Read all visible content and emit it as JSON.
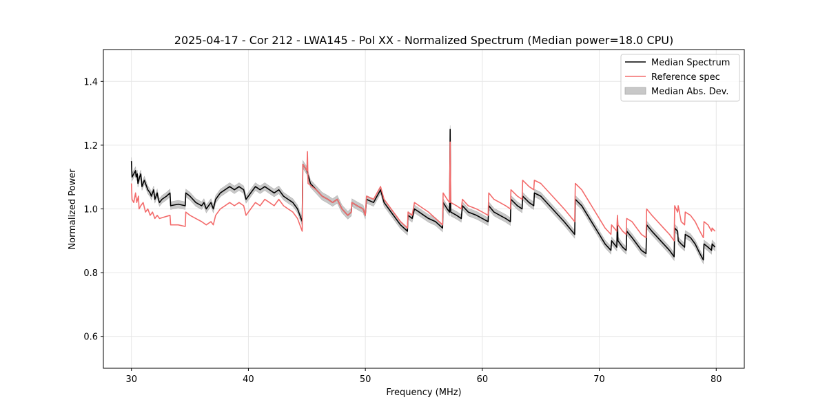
{
  "chart_data": {
    "type": "line",
    "title": "2025-04-17 - Cor 212 - LWA145 - Pol XX - Normalized Spectrum (Median power=18.0 CPU)",
    "xlabel": "Frequency (MHz)",
    "ylabel": "Normalized Power",
    "xlim": [
      27.6,
      82.4
    ],
    "ylim": [
      0.5,
      1.5
    ],
    "xticks": [
      30,
      40,
      50,
      60,
      70,
      80
    ],
    "yticks": [
      0.6,
      0.8,
      1.0,
      1.2,
      1.4
    ],
    "xtick_labels": [
      "30",
      "40",
      "50",
      "60",
      "70",
      "80"
    ],
    "ytick_labels": [
      "0.6",
      "0.8",
      "1.0",
      "1.2",
      "1.4"
    ],
    "grid": true,
    "legend_position": "top-right",
    "mad_width": 0.012,
    "series": [
      {
        "name": "Median Spectrum",
        "color": "#000000",
        "points": [
          [
            30.0,
            1.15
          ],
          [
            30.05,
            1.1
          ],
          [
            30.2,
            1.11
          ],
          [
            30.35,
            1.12
          ],
          [
            30.4,
            1.1
          ],
          [
            30.5,
            1.11
          ],
          [
            30.55,
            1.08
          ],
          [
            30.7,
            1.1
          ],
          [
            30.8,
            1.11
          ],
          [
            30.9,
            1.07
          ],
          [
            31.1,
            1.09
          ],
          [
            31.2,
            1.08
          ],
          [
            31.4,
            1.06
          ],
          [
            31.6,
            1.05
          ],
          [
            31.7,
            1.04
          ],
          [
            31.9,
            1.06
          ],
          [
            32.0,
            1.03
          ],
          [
            32.2,
            1.05
          ],
          [
            32.3,
            1.03
          ],
          [
            32.4,
            1.02
          ],
          [
            32.6,
            1.03
          ],
          [
            33.0,
            1.04
          ],
          [
            33.3,
            1.05
          ],
          [
            33.35,
            1.01
          ],
          [
            34.0,
            1.015
          ],
          [
            34.6,
            1.01
          ],
          [
            34.65,
            1.05
          ],
          [
            35.0,
            1.04
          ],
          [
            35.5,
            1.02
          ],
          [
            36.0,
            1.01
          ],
          [
            36.2,
            1.02
          ],
          [
            36.4,
            1.0
          ],
          [
            36.8,
            1.02
          ],
          [
            37.0,
            1.0
          ],
          [
            37.2,
            1.03
          ],
          [
            37.6,
            1.05
          ],
          [
            38.0,
            1.06
          ],
          [
            38.4,
            1.07
          ],
          [
            38.8,
            1.06
          ],
          [
            39.2,
            1.07
          ],
          [
            39.6,
            1.06
          ],
          [
            39.8,
            1.03
          ],
          [
            40.2,
            1.05
          ],
          [
            40.6,
            1.07
          ],
          [
            41.0,
            1.06
          ],
          [
            41.4,
            1.07
          ],
          [
            41.8,
            1.06
          ],
          [
            42.2,
            1.05
          ],
          [
            42.6,
            1.06
          ],
          [
            43.0,
            1.04
          ],
          [
            43.4,
            1.03
          ],
          [
            43.8,
            1.02
          ],
          [
            44.2,
            1.0
          ],
          [
            44.6,
            0.96
          ],
          [
            44.65,
            1.14
          ],
          [
            45.0,
            1.12
          ],
          [
            45.3,
            1.08
          ],
          [
            45.8,
            1.06
          ],
          [
            46.3,
            1.04
          ],
          [
            46.8,
            1.03
          ],
          [
            47.2,
            1.02
          ],
          [
            47.6,
            1.03
          ],
          [
            48.0,
            1.0
          ],
          [
            48.5,
            0.98
          ],
          [
            48.8,
            0.99
          ],
          [
            48.85,
            1.02
          ],
          [
            49.3,
            1.01
          ],
          [
            49.8,
            1.0
          ],
          [
            50.0,
            0.98
          ],
          [
            50.1,
            1.03
          ],
          [
            50.7,
            1.02
          ],
          [
            51.3,
            1.06
          ],
          [
            51.6,
            1.02
          ],
          [
            52.2,
            0.99
          ],
          [
            53.0,
            0.95
          ],
          [
            53.6,
            0.93
          ],
          [
            53.65,
            0.98
          ],
          [
            54.0,
            0.97
          ],
          [
            54.2,
            1.0
          ],
          [
            54.6,
            0.99
          ],
          [
            55.0,
            0.98
          ],
          [
            55.4,
            0.97
          ],
          [
            56.0,
            0.96
          ],
          [
            56.6,
            0.94
          ],
          [
            56.65,
            1.02
          ],
          [
            57.0,
            1.0
          ],
          [
            57.2,
            0.99
          ],
          [
            57.25,
            1.25
          ],
          [
            57.3,
            0.99
          ],
          [
            57.8,
            0.98
          ],
          [
            58.2,
            0.97
          ],
          [
            58.3,
            1.01
          ],
          [
            58.8,
            0.99
          ],
          [
            59.5,
            0.98
          ],
          [
            60.0,
            0.97
          ],
          [
            60.5,
            0.96
          ],
          [
            60.55,
            1.01
          ],
          [
            61.0,
            0.99
          ],
          [
            61.5,
            0.98
          ],
          [
            62.0,
            0.97
          ],
          [
            62.4,
            0.96
          ],
          [
            62.45,
            1.03
          ],
          [
            63.0,
            1.01
          ],
          [
            63.4,
            1.0
          ],
          [
            63.45,
            1.04
          ],
          [
            64.0,
            1.02
          ],
          [
            64.4,
            1.01
          ],
          [
            64.45,
            1.05
          ],
          [
            65.0,
            1.04
          ],
          [
            66.0,
            1.0
          ],
          [
            67.0,
            0.96
          ],
          [
            67.9,
            0.92
          ],
          [
            67.95,
            1.03
          ],
          [
            68.5,
            1.01
          ],
          [
            69.0,
            0.98
          ],
          [
            69.5,
            0.95
          ],
          [
            70.0,
            0.92
          ],
          [
            70.5,
            0.89
          ],
          [
            71.0,
            0.87
          ],
          [
            71.05,
            0.9
          ],
          [
            71.5,
            0.88
          ],
          [
            71.55,
            0.97
          ],
          [
            71.6,
            0.9
          ],
          [
            72.0,
            0.88
          ],
          [
            72.3,
            0.87
          ],
          [
            72.35,
            0.93
          ],
          [
            72.8,
            0.91
          ],
          [
            73.2,
            0.89
          ],
          [
            73.6,
            0.87
          ],
          [
            74.0,
            0.86
          ],
          [
            74.05,
            0.95
          ],
          [
            74.5,
            0.93
          ],
          [
            75.0,
            0.91
          ],
          [
            75.5,
            0.89
          ],
          [
            76.0,
            0.87
          ],
          [
            76.4,
            0.85
          ],
          [
            76.45,
            0.94
          ],
          [
            76.7,
            0.93
          ],
          [
            76.75,
            0.9
          ],
          [
            77.0,
            0.89
          ],
          [
            77.3,
            0.88
          ],
          [
            77.35,
            0.92
          ],
          [
            77.8,
            0.91
          ],
          [
            78.2,
            0.89
          ],
          [
            78.6,
            0.86
          ],
          [
            78.9,
            0.84
          ],
          [
            78.95,
            0.89
          ],
          [
            79.3,
            0.88
          ],
          [
            79.6,
            0.87
          ],
          [
            79.65,
            0.89
          ],
          [
            79.9,
            0.88
          ]
        ]
      },
      {
        "name": "Reference spec",
        "color": "#f36b6b",
        "points": [
          [
            30.0,
            1.08
          ],
          [
            30.05,
            1.03
          ],
          [
            30.2,
            1.02
          ],
          [
            30.35,
            1.05
          ],
          [
            30.45,
            1.02
          ],
          [
            30.6,
            1.04
          ],
          [
            30.65,
            1.0
          ],
          [
            30.8,
            1.01
          ],
          [
            31.0,
            1.02
          ],
          [
            31.2,
            0.99
          ],
          [
            31.4,
            1.0
          ],
          [
            31.6,
            0.98
          ],
          [
            31.8,
            0.99
          ],
          [
            32.0,
            0.97
          ],
          [
            32.2,
            0.98
          ],
          [
            32.4,
            0.97
          ],
          [
            33.3,
            0.98
          ],
          [
            33.35,
            0.95
          ],
          [
            34.0,
            0.95
          ],
          [
            34.6,
            0.945
          ],
          [
            34.65,
            0.99
          ],
          [
            35.0,
            0.98
          ],
          [
            35.5,
            0.97
          ],
          [
            36.0,
            0.96
          ],
          [
            36.4,
            0.95
          ],
          [
            36.8,
            0.96
          ],
          [
            37.0,
            0.95
          ],
          [
            37.2,
            0.98
          ],
          [
            37.6,
            1.0
          ],
          [
            38.0,
            1.01
          ],
          [
            38.4,
            1.02
          ],
          [
            38.8,
            1.01
          ],
          [
            39.2,
            1.02
          ],
          [
            39.6,
            1.01
          ],
          [
            39.8,
            0.98
          ],
          [
            40.2,
            1.0
          ],
          [
            40.6,
            1.02
          ],
          [
            41.0,
            1.01
          ],
          [
            41.4,
            1.03
          ],
          [
            41.8,
            1.02
          ],
          [
            42.2,
            1.01
          ],
          [
            42.6,
            1.03
          ],
          [
            43.0,
            1.01
          ],
          [
            43.4,
            1.0
          ],
          [
            43.8,
            0.99
          ],
          [
            44.2,
            0.97
          ],
          [
            44.6,
            0.93
          ],
          [
            44.65,
            1.14
          ],
          [
            45.0,
            1.12
          ],
          [
            45.05,
            1.18
          ],
          [
            45.1,
            1.08
          ],
          [
            45.8,
            1.06
          ],
          [
            46.3,
            1.04
          ],
          [
            46.8,
            1.03
          ],
          [
            47.2,
            1.02
          ],
          [
            47.6,
            1.03
          ],
          [
            48.0,
            1.0
          ],
          [
            48.5,
            0.98
          ],
          [
            48.8,
            0.99
          ],
          [
            48.85,
            1.02
          ],
          [
            49.3,
            1.01
          ],
          [
            49.8,
            1.0
          ],
          [
            50.0,
            0.98
          ],
          [
            50.1,
            1.04
          ],
          [
            50.7,
            1.03
          ],
          [
            51.3,
            1.07
          ],
          [
            51.6,
            1.03
          ],
          [
            52.2,
            1.0
          ],
          [
            53.0,
            0.96
          ],
          [
            53.6,
            0.94
          ],
          [
            53.65,
            0.99
          ],
          [
            54.0,
            0.98
          ],
          [
            54.2,
            1.02
          ],
          [
            54.6,
            1.01
          ],
          [
            55.0,
            1.0
          ],
          [
            55.4,
            0.99
          ],
          [
            56.0,
            0.97
          ],
          [
            56.6,
            0.95
          ],
          [
            56.65,
            1.05
          ],
          [
            57.0,
            1.03
          ],
          [
            57.2,
            1.02
          ],
          [
            57.25,
            1.21
          ],
          [
            57.3,
            1.02
          ],
          [
            57.8,
            1.01
          ],
          [
            58.2,
            1.0
          ],
          [
            58.3,
            1.03
          ],
          [
            58.8,
            1.01
          ],
          [
            59.5,
            1.0
          ],
          [
            60.0,
            0.99
          ],
          [
            60.5,
            0.98
          ],
          [
            60.55,
            1.05
          ],
          [
            61.0,
            1.03
          ],
          [
            61.5,
            1.02
          ],
          [
            62.0,
            1.01
          ],
          [
            62.4,
            1.0
          ],
          [
            62.45,
            1.06
          ],
          [
            63.0,
            1.04
          ],
          [
            63.4,
            1.03
          ],
          [
            63.45,
            1.09
          ],
          [
            64.0,
            1.07
          ],
          [
            64.4,
            1.06
          ],
          [
            64.45,
            1.09
          ],
          [
            65.0,
            1.08
          ],
          [
            66.0,
            1.04
          ],
          [
            67.0,
            1.0
          ],
          [
            67.9,
            0.96
          ],
          [
            67.95,
            1.08
          ],
          [
            68.5,
            1.06
          ],
          [
            69.0,
            1.03
          ],
          [
            69.5,
            1.0
          ],
          [
            70.0,
            0.97
          ],
          [
            70.5,
            0.94
          ],
          [
            71.0,
            0.92
          ],
          [
            71.05,
            0.95
          ],
          [
            71.5,
            0.93
          ],
          [
            71.55,
            0.98
          ],
          [
            71.6,
            0.95
          ],
          [
            72.0,
            0.93
          ],
          [
            72.3,
            0.92
          ],
          [
            72.35,
            0.97
          ],
          [
            72.8,
            0.96
          ],
          [
            73.2,
            0.94
          ],
          [
            73.6,
            0.92
          ],
          [
            74.0,
            0.91
          ],
          [
            74.05,
            1.0
          ],
          [
            74.5,
            0.98
          ],
          [
            75.0,
            0.96
          ],
          [
            75.5,
            0.94
          ],
          [
            76.0,
            0.92
          ],
          [
            76.4,
            0.9
          ],
          [
            76.45,
            1.01
          ],
          [
            76.7,
            0.99
          ],
          [
            76.75,
            1.01
          ],
          [
            77.0,
            0.96
          ],
          [
            77.3,
            0.95
          ],
          [
            77.35,
            0.99
          ],
          [
            77.8,
            0.98
          ],
          [
            78.2,
            0.96
          ],
          [
            78.6,
            0.93
          ],
          [
            78.9,
            0.91
          ],
          [
            78.95,
            0.96
          ],
          [
            79.3,
            0.95
          ],
          [
            79.6,
            0.93
          ],
          [
            79.65,
            0.94
          ],
          [
            79.9,
            0.93
          ]
        ]
      }
    ],
    "legend": [
      {
        "label": "Median Spectrum",
        "kind": "line",
        "color": "#000000"
      },
      {
        "label": "Reference spec",
        "kind": "line",
        "color": "#f36b6b"
      },
      {
        "label": "Median Abs. Dev.",
        "kind": "patch",
        "color": "#c8c8c8"
      }
    ]
  }
}
